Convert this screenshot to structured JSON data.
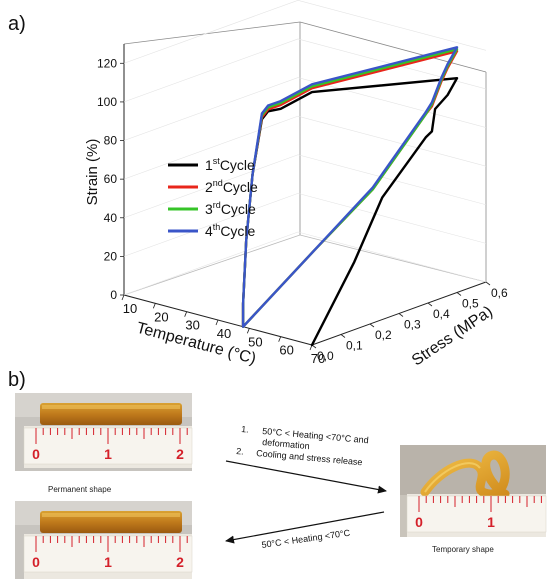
{
  "panel_a": {
    "label": "a)"
  },
  "panel_b": {
    "label": "b)",
    "permanent_caption": "Permanent shape",
    "temporary_caption": "Temporary shape",
    "step1_num": "1.",
    "step1_line1": "50°C < Heating <70°C and",
    "step1_line2": "deformation",
    "step2_num": "2.",
    "step2_line1": "Cooling and stress release",
    "reverse_step": "50°C < Heating <70°C",
    "ruler_marks": [
      "0",
      "1",
      "2"
    ]
  },
  "chart_data": {
    "type": "line",
    "projection": "3d",
    "x_axis": {
      "label": "Temperature (°C)",
      "ticks": [
        "10",
        "20",
        "30",
        "40",
        "50",
        "60",
        "70"
      ],
      "range": [
        10,
        70
      ]
    },
    "y_axis": {
      "label": "Stress (MPa)",
      "ticks": [
        "0,0",
        "0,1",
        "0,2",
        "0,3",
        "0,4",
        "0,5",
        "0,6"
      ],
      "range": [
        0,
        0.6
      ]
    },
    "z_axis": {
      "label": "Strain (%)",
      "ticks": [
        "0",
        "20",
        "40",
        "60",
        "80",
        "100",
        "120"
      ],
      "range": [
        0,
        130
      ]
    },
    "legend": {
      "placement": "center-left",
      "entries": [
        {
          "main": "1",
          "sup": "st",
          "rest": "Cycle",
          "color": "#000000"
        },
        {
          "main": "2",
          "sup": "nd",
          "rest": "Cycle",
          "color": "#e8261b"
        },
        {
          "main": "3",
          "sup": "rd",
          "rest": "Cycle",
          "color": "#36c428"
        },
        {
          "main": "4",
          "sup": "th",
          "rest": "Cycle",
          "color": "#3a55c8"
        }
      ]
    },
    "series": [
      {
        "color": "#000000",
        "points": [
          [
            70,
            0,
            0
          ],
          [
            65,
            0.2,
            30
          ],
          [
            60,
            0.35,
            53
          ],
          [
            60,
            0.5,
            76
          ],
          [
            62,
            0.5,
            80
          ],
          [
            63,
            0.5,
            92
          ],
          [
            67,
            0.5,
            101
          ],
          [
            70,
            0.5,
            111
          ],
          [
            70,
            0,
            131
          ],
          [
            60,
            0,
            118
          ],
          [
            56,
            0,
            115
          ],
          [
            54,
            0,
            110
          ],
          [
            51,
            0,
            80
          ],
          [
            49,
            0,
            45
          ],
          [
            48,
            0,
            12
          ],
          [
            48,
            0,
            0
          ]
        ]
      },
      {
        "color": "#e8261b",
        "points": [
          [
            48,
            0,
            0
          ],
          [
            52,
            0.2,
            30
          ],
          [
            57,
            0.35,
            56
          ],
          [
            60,
            0.5,
            88
          ],
          [
            62,
            0.5,
            93
          ],
          [
            65,
            0.5,
            107
          ],
          [
            67,
            0.5,
            115
          ],
          [
            70,
            0.5,
            125
          ],
          [
            70,
            0,
            133
          ],
          [
            60,
            0,
            120
          ],
          [
            56,
            0,
            116
          ],
          [
            54,
            0,
            111
          ],
          [
            51,
            0,
            80
          ],
          [
            49,
            0,
            45
          ],
          [
            48,
            0,
            12
          ],
          [
            48,
            0,
            0
          ]
        ]
      },
      {
        "color": "#36c428",
        "points": [
          [
            48,
            0,
            0
          ],
          [
            52,
            0.2,
            30
          ],
          [
            57,
            0.35,
            56
          ],
          [
            60,
            0.5,
            88
          ],
          [
            62,
            0.5,
            94
          ],
          [
            65,
            0.5,
            108
          ],
          [
            67,
            0.5,
            116
          ],
          [
            70,
            0.5,
            126
          ],
          [
            70,
            0,
            134
          ],
          [
            60,
            0,
            121
          ],
          [
            56,
            0,
            117
          ],
          [
            54,
            0,
            112
          ],
          [
            51,
            0,
            80
          ],
          [
            49,
            0,
            45
          ],
          [
            48,
            0,
            12
          ],
          [
            48,
            0,
            0
          ]
        ]
      },
      {
        "color": "#3a55c8",
        "points": [
          [
            48,
            0,
            0
          ],
          [
            52,
            0.2,
            30
          ],
          [
            57,
            0.35,
            57
          ],
          [
            60,
            0.5,
            89
          ],
          [
            62,
            0.5,
            95
          ],
          [
            65,
            0.5,
            109
          ],
          [
            67,
            0.5,
            117
          ],
          [
            70,
            0.5,
            127
          ],
          [
            70,
            0,
            135
          ],
          [
            60,
            0,
            122
          ],
          [
            56,
            0,
            118
          ],
          [
            54,
            0,
            113
          ],
          [
            51,
            0,
            80
          ],
          [
            49,
            0,
            45
          ],
          [
            48,
            0,
            12
          ],
          [
            48,
            0,
            0
          ]
        ]
      }
    ]
  }
}
